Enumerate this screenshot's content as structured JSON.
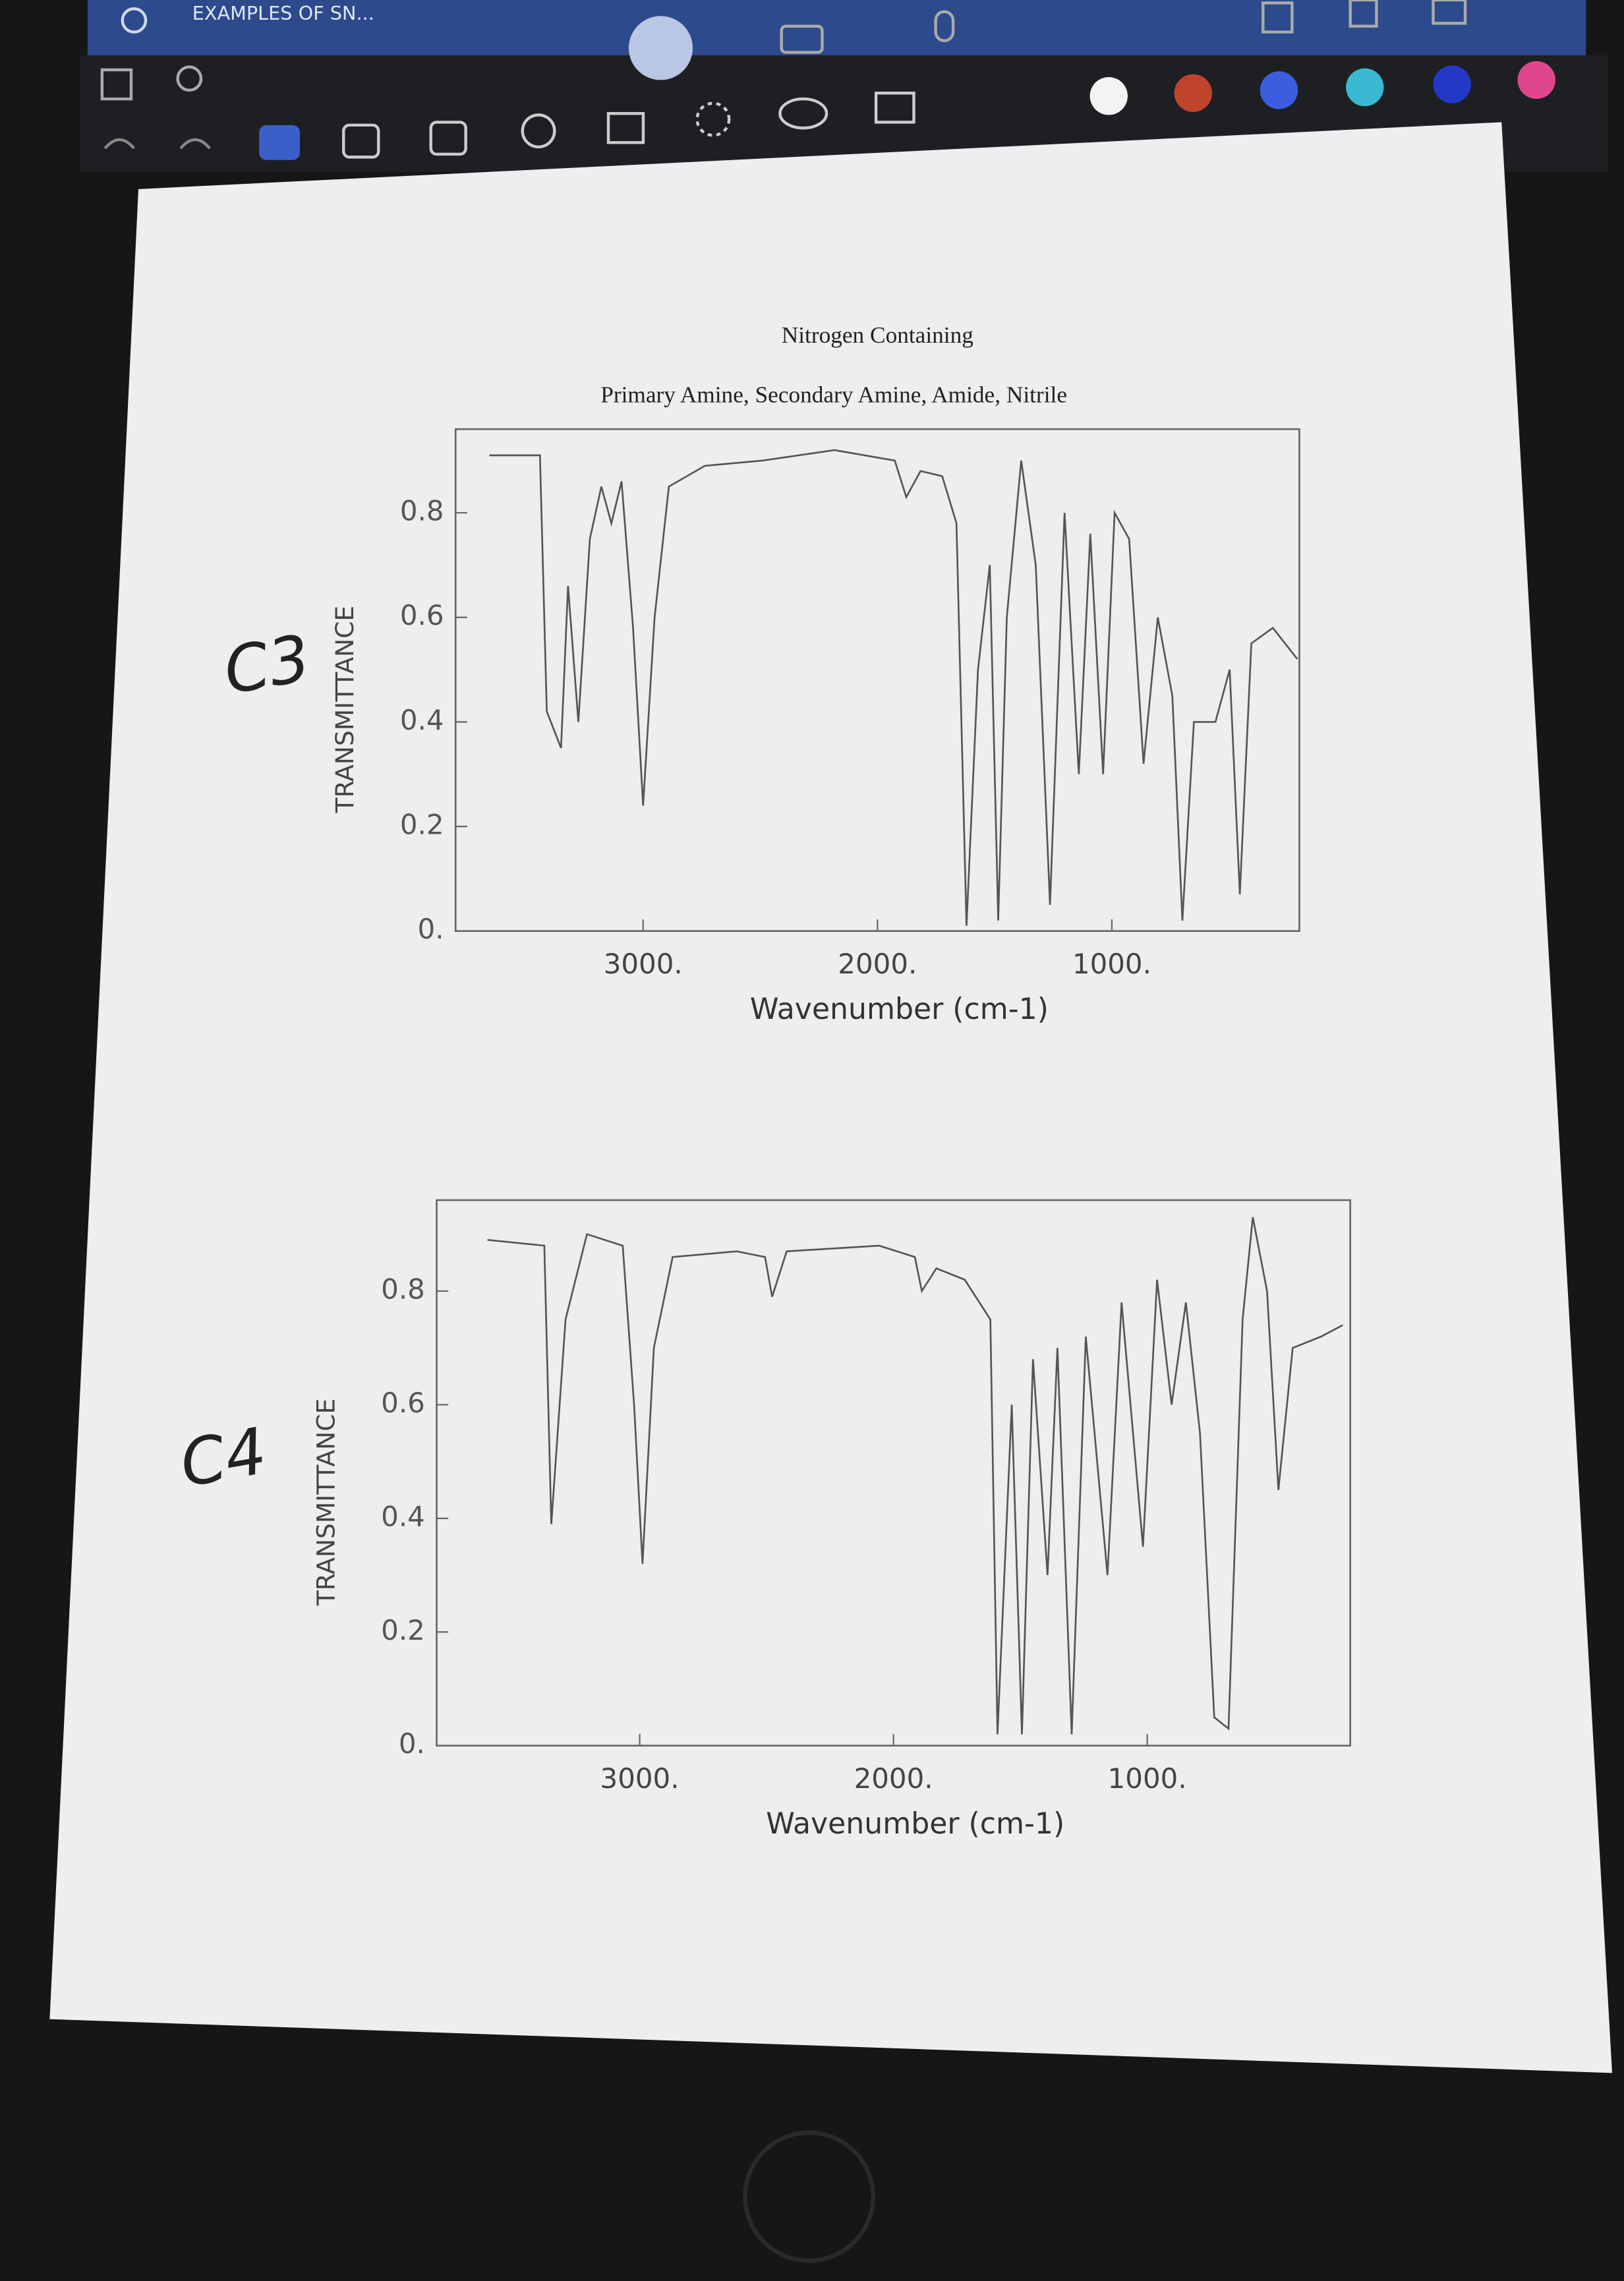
{
  "app": {
    "tab_title": "EXAMPLES OF SN..."
  },
  "annotations": {
    "first": "C3",
    "second": "C4"
  },
  "chart_data": [
    {
      "type": "line",
      "title": "Nitrogen Containing",
      "subtitle": "Primary Amine, Secondary Amine, Amide, Nitrile",
      "xlabel": "Wavenumber (cm-1)",
      "ylabel": "TRANSMITTANCE",
      "color": "#555555",
      "xlim": [
        3800,
        200
      ],
      "ylim": [
        0,
        0.96
      ],
      "xticks": [
        {
          "value": 3000,
          "label": "3000."
        },
        {
          "value": 2000,
          "label": "2000."
        },
        {
          "value": 1000,
          "label": "1000."
        }
      ],
      "yticks": [
        {
          "value": 0,
          "label": "0."
        },
        0.2,
        0.4,
        0.6,
        0.8
      ],
      "x": [
        3656,
        3440,
        3411,
        3350,
        3320,
        3276,
        3227,
        3178,
        3135,
        3092,
        3043,
        3000,
        2951,
        2890,
        2736,
        2490,
        2184,
        1926,
        1877,
        1816,
        1724,
        1663,
        1620,
        1571,
        1521,
        1485,
        1448,
        1387,
        1325,
        1264,
        1202,
        1141,
        1092,
        1037,
        988,
        926,
        865,
        804,
        742,
        699,
        650,
        558,
        497,
        454,
        405,
        313,
        209
      ],
      "values": [
        0.91,
        0.91,
        0.42,
        0.35,
        0.66,
        0.4,
        0.75,
        0.85,
        0.78,
        0.86,
        0.58,
        0.24,
        0.6,
        0.85,
        0.89,
        0.9,
        0.92,
        0.9,
        0.83,
        0.88,
        0.87,
        0.78,
        0.01,
        0.5,
        0.7,
        0.02,
        0.6,
        0.9,
        0.7,
        0.05,
        0.8,
        0.3,
        0.76,
        0.3,
        0.8,
        0.75,
        0.32,
        0.6,
        0.45,
        0.02,
        0.4,
        0.4,
        0.5,
        0.07,
        0.55,
        0.58,
        0.52
      ]
    },
    {
      "type": "line",
      "xlabel": "Wavenumber (cm-1)",
      "ylabel": "TRANSMITTANCE",
      "color": "#555555",
      "xlim": [
        3800,
        200
      ],
      "ylim": [
        0,
        0.96
      ],
      "xticks": [
        {
          "value": 3000,
          "label": "3000."
        },
        {
          "value": 2000,
          "label": "2000."
        },
        {
          "value": 1000,
          "label": "1000."
        }
      ],
      "yticks": [
        {
          "value": 0,
          "label": "0."
        },
        0.2,
        0.4,
        0.6,
        0.8
      ],
      "x": [
        3600,
        3376,
        3348,
        3292,
        3208,
        3067,
        3022,
        2989,
        2944,
        2870,
        2618,
        2506,
        2478,
        2421,
        2056,
        1916,
        1888,
        1831,
        1719,
        1618,
        1590,
        1534,
        1494,
        1450,
        1393,
        1354,
        1298,
        1242,
        1157,
        1101,
        1017,
        961,
        904,
        848,
        792,
        736,
        680,
        624,
        584,
        528,
        483,
        427,
        315,
        230
      ],
      "values": [
        0.89,
        0.88,
        0.39,
        0.75,
        0.9,
        0.88,
        0.6,
        0.32,
        0.7,
        0.86,
        0.87,
        0.86,
        0.79,
        0.87,
        0.88,
        0.86,
        0.8,
        0.84,
        0.82,
        0.75,
        0.02,
        0.6,
        0.02,
        0.68,
        0.3,
        0.7,
        0.02,
        0.72,
        0.3,
        0.78,
        0.35,
        0.82,
        0.6,
        0.78,
        0.55,
        0.05,
        0.03,
        0.75,
        0.93,
        0.8,
        0.45,
        0.7,
        0.72,
        0.74
      ]
    }
  ]
}
